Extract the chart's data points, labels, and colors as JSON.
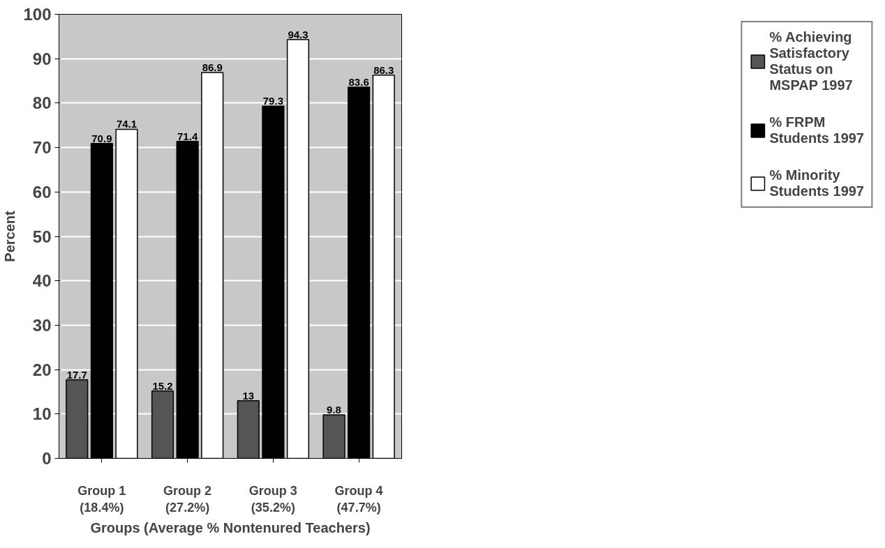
{
  "chart_data": {
    "type": "bar",
    "xlabel": "Groups (Average % Nontenured Teachers)",
    "ylabel": "Percent",
    "categories": [
      "Group 1 (18.4%)",
      "Group 2 (27.2%)",
      "Group 3 (35.2%)",
      "Group 4 (47.7%)"
    ],
    "series": [
      {
        "name": "% Achieving Satisfactory Status on MSPAP 1997",
        "color": "#555555",
        "values": [
          17.7,
          15.2,
          13,
          9.8
        ]
      },
      {
        "name": "% FRPM Students 1997",
        "color": "#000000",
        "values": [
          70.9,
          71.4,
          79.3,
          83.6
        ]
      },
      {
        "name": "% Minority Students 1997",
        "color": "#ffffff",
        "values": [
          74.1,
          86.9,
          94.3,
          86.3
        ]
      }
    ],
    "ylim": [
      0,
      100
    ],
    "yticks": [
      0,
      10,
      20,
      30,
      40,
      50,
      60,
      70,
      80,
      90,
      100
    ],
    "grid": "y",
    "legend": "right",
    "data_labels": true
  }
}
